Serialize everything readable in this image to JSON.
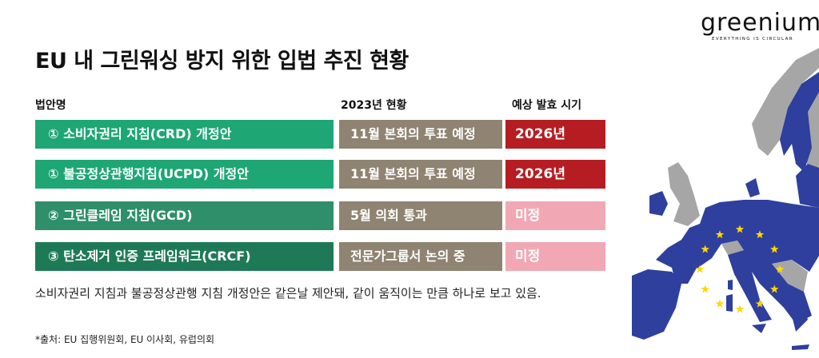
{
  "logo": {
    "word": "greenium",
    "tagline": "EVERYTHING IS CIRCULAR"
  },
  "title": "EU 내 그린워싱 방지 위한 입법 추진 현황",
  "headers": {
    "law": "법안명",
    "status": "2023년 현황",
    "release": "예상 발효 시기"
  },
  "rows": [
    {
      "law": "① 소비자권리 지침(CRD) 개정안",
      "status": "11월 본회의 투표 예정",
      "release": "2026년",
      "law_color": "#1ea675",
      "release_color": "#b51d22"
    },
    {
      "law": "① 불공정상관행지침(UCPD) 개정안",
      "status": "11월 본회의 투표 예정",
      "release": "2026년",
      "law_color": "#1ea675",
      "release_color": "#b51d22"
    },
    {
      "law": "② 그린클레임 지침(GCD)",
      "status": "5월 의회 통과",
      "release": "미정",
      "law_color": "#2e8f6a",
      "release_color": "#f2a8b4"
    },
    {
      "law": "③ 탄소제거 인증 프레임워크(CRCF)",
      "status": "전문가그룹서 논의 중",
      "release": "미정",
      "law_color": "#1e7a56",
      "release_color": "#f2a8b4"
    }
  ],
  "status_color": "#8f8371",
  "note": "소비자권리 지침과 불공정상관행 지침 개정안은 같은날 제안돼, 같이 움직이는 만큼 하나로 보고 있음.",
  "source": "*출처: EU 집행위원회, EU 이사회, 유럽의회",
  "map": {
    "eu_color": "#2f3f9e",
    "non_eu_color": "#a6a6a6",
    "star_color": "#ffd700",
    "star_count": 12
  }
}
